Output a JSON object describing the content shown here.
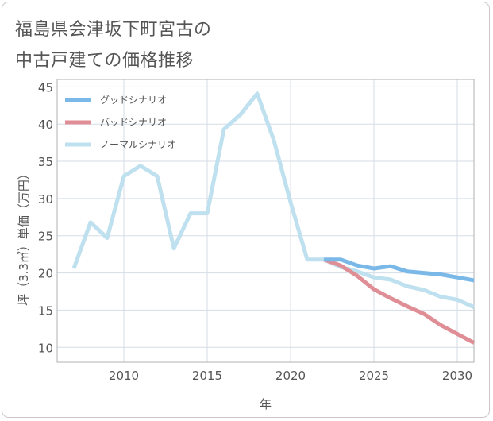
{
  "page": {
    "title_line1": "福島県会津坂下町宮古の",
    "title_line2": "中古戸建ての価格推移"
  },
  "chart_data": {
    "type": "line",
    "title": "福島県会津坂下町宮古の中古戸建ての価格推移",
    "xlabel": "年",
    "ylabel": "坪（3.3㎡）単価（万円）",
    "xlim": [
      2006,
      2031
    ],
    "ylim": [
      8,
      46
    ],
    "x_ticks": [
      2010,
      2015,
      2020,
      2025,
      2030
    ],
    "y_ticks": [
      10,
      15,
      20,
      25,
      30,
      35,
      40,
      45
    ],
    "grid": true,
    "legend_position": "top-left",
    "series": [
      {
        "name": "グッドシナリオ",
        "color": "#7ab8e8",
        "x": [
          2022,
          2023,
          2024,
          2025,
          2026,
          2027,
          2028,
          2029,
          2030,
          2031
        ],
        "values": [
          21.8,
          21.8,
          21.0,
          20.6,
          20.9,
          20.2,
          20.0,
          19.8,
          19.4,
          19.0
        ]
      },
      {
        "name": "バッドシナリオ",
        "color": "#e08e96",
        "x": [
          2022,
          2023,
          2024,
          2025,
          2026,
          2027,
          2028,
          2029,
          2030,
          2031
        ],
        "values": [
          21.8,
          21.0,
          19.6,
          17.8,
          16.6,
          15.5,
          14.5,
          13.0,
          11.8,
          10.6
        ]
      },
      {
        "name": "ノーマルシナリオ",
        "color": "#bfe0ee",
        "x": [
          2007,
          2008,
          2009,
          2010,
          2011,
          2012,
          2013,
          2014,
          2015,
          2016,
          2017,
          2018,
          2019,
          2020,
          2021,
          2022,
          2023,
          2024,
          2025,
          2026,
          2027,
          2028,
          2029,
          2030,
          2031
        ],
        "values": [
          20.6,
          26.8,
          24.7,
          33.0,
          34.4,
          33.0,
          23.3,
          28.0,
          28.0,
          39.3,
          41.3,
          44.1,
          37.8,
          29.5,
          21.8,
          21.8,
          20.8,
          20.2,
          19.4,
          19.1,
          18.2,
          17.7,
          16.8,
          16.4,
          15.4
        ]
      }
    ]
  }
}
